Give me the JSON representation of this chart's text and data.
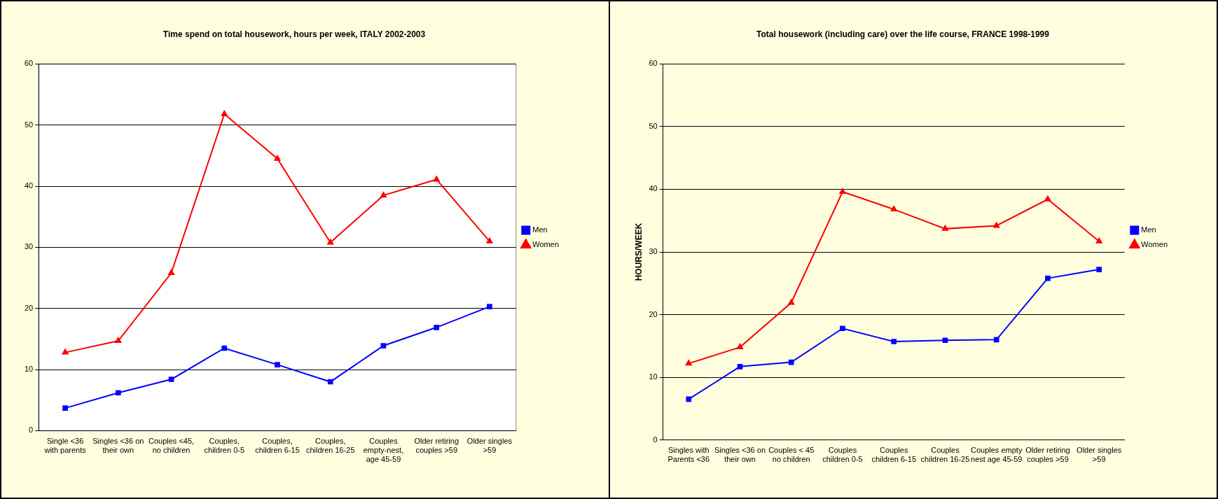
{
  "chart_data": [
    {
      "type": "line",
      "title": "Time spend on total housework, hours per week, ITALY 2002-2003",
      "categories": [
        "Single <36 with parents",
        "Singles <36 on their own",
        "Couples <45, no children",
        "Couples, children 0-5",
        "Couples, children 6-15",
        "Couples, children 16-25",
        "Couples empty-nest, age 45-59",
        "Older retiring couples >59",
        "Older singles >59"
      ],
      "series": [
        {
          "name": "Men",
          "color": "#0000ff",
          "marker": "square",
          "values": [
            3.7,
            6.2,
            8.4,
            13.5,
            10.8,
            8.0,
            13.9,
            16.9,
            20.3
          ]
        },
        {
          "name": "Women",
          "color": "#ff0000",
          "marker": "triangle",
          "values": [
            12.8,
            14.7,
            25.8,
            51.8,
            44.5,
            30.8,
            38.5,
            41.1,
            31.0
          ]
        }
      ],
      "ylim": [
        0,
        60
      ],
      "yticks": [
        0,
        10,
        20,
        30,
        40,
        50,
        60
      ],
      "grid": "y",
      "legend": "right"
    },
    {
      "type": "line",
      "title": "Total housework (including care) over the life course, FRANCE 1998-1999",
      "ylabel": "HOURS/WEEK",
      "categories": [
        "Singles with Parents <36",
        "Singles <36 on their own",
        "Couples < 45 no children",
        "Couples children 0-5",
        "Couples children 6-15",
        "Couples children 16-25",
        "Couples empty nest age 45-59",
        "Older retiring couples >59",
        "Older singles >59"
      ],
      "series": [
        {
          "name": "Men",
          "color": "#0000ff",
          "marker": "square",
          "values": [
            6.5,
            11.7,
            12.4,
            17.8,
            15.7,
            15.9,
            16.0,
            25.8,
            27.2
          ]
        },
        {
          "name": "Women",
          "color": "#ff0000",
          "marker": "triangle",
          "values": [
            12.2,
            14.8,
            21.9,
            39.6,
            36.8,
            33.7,
            34.2,
            38.4,
            31.7
          ]
        }
      ],
      "ylim": [
        0,
        60
      ],
      "yticks": [
        0,
        10,
        20,
        30,
        40,
        50,
        60
      ],
      "grid": "y",
      "legend": "right"
    }
  ]
}
